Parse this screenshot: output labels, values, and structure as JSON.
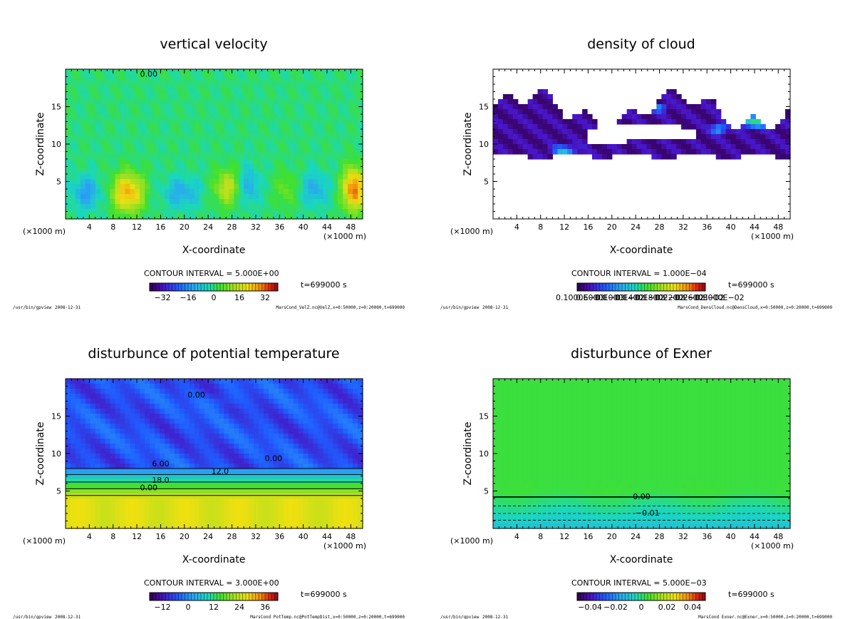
{
  "footer_program": "/usr/bin/gpview",
  "footer_date": "2008-12-31",
  "time_label": "t=699000 s",
  "xlabel": "X-coordinate",
  "ylabel": "Z-coordinate",
  "x_unit": "(×1000 m)",
  "chart_data": [
    {
      "type": "heatmap",
      "title": "vertical velocity",
      "xlabel": "X-coordinate",
      "ylabel": "Z-coordinate",
      "x_unit": "(×1000 m)",
      "xlim": [
        0,
        50
      ],
      "ylim": [
        0,
        20
      ],
      "xticks": [
        4,
        8,
        12,
        16,
        20,
        24,
        28,
        32,
        36,
        40,
        44,
        48
      ],
      "yticks": [
        5,
        10,
        15
      ],
      "contour_interval": "CONTOUR INTERVAL = 5.000E+00",
      "contour_labels": [
        "0.00"
      ],
      "colorbar_ticks": [
        "−32",
        "−16",
        "0",
        "16",
        "32"
      ],
      "colorbar_range": [
        -40,
        40
      ],
      "time": "t=699000 s",
      "source": "MarsCond_VelZ.nc@VelZ,x=0:50000,z=0:20000,t=699000"
    },
    {
      "type": "heatmap",
      "title": "density of cloud",
      "xlabel": "X-coordinate",
      "ylabel": "Z-coordinate",
      "x_unit": "(×1000 m)",
      "xlim": [
        0,
        50
      ],
      "ylim": [
        0,
        20
      ],
      "xticks": [
        4,
        8,
        12,
        16,
        20,
        24,
        28,
        32,
        36,
        40,
        44,
        48
      ],
      "yticks": [
        5,
        10,
        15
      ],
      "contour_interval": "CONTOUR INTERVAL = 1.000E−04",
      "contour_labels": [],
      "colorbar_ticks": [
        "0.1000E−03",
        "0.6000E−03",
        "0.1000E−02",
        "0.1400E−02",
        "0.1800E−02",
        "0.2200E−02",
        "0.2600E−02",
        "0.3000E−02"
      ],
      "colorbar_range": [
        0,
        0.003
      ],
      "time": "t=699000 s",
      "source": "MarsCond_DensCloud.nc@DensCloud,x=0:50000,z=0:20000,t=699000"
    },
    {
      "type": "heatmap",
      "title": "disturbunce of potential temperature",
      "xlabel": "X-coordinate",
      "ylabel": "Z-coordinate",
      "x_unit": "(×1000 m)",
      "xlim": [
        0,
        50
      ],
      "ylim": [
        0,
        20
      ],
      "xticks": [
        4,
        8,
        12,
        16,
        20,
        24,
        28,
        32,
        36,
        40,
        44,
        48
      ],
      "yticks": [
        5,
        10,
        15
      ],
      "contour_interval": "CONTOUR INTERVAL = 3.000E+00",
      "contour_labels": [
        "0.00",
        "0.00",
        "6.00",
        "12.0",
        "18.0",
        "0.00"
      ],
      "colorbar_ticks": [
        "−12",
        "0",
        "12",
        "24",
        "36"
      ],
      "colorbar_range": [
        -18,
        42
      ],
      "time": "t=699000 s",
      "source": "MarsCond_PotTemp.nc@PotTempDist,x=0:50000,z=0:20000,t=699000"
    },
    {
      "type": "heatmap",
      "title": "disturbunce of Exner",
      "xlabel": "X-coordinate",
      "ylabel": "Z-coordinate",
      "x_unit": "(×1000 m)",
      "xlim": [
        0,
        50
      ],
      "ylim": [
        0,
        20
      ],
      "xticks": [
        4,
        8,
        12,
        16,
        20,
        24,
        28,
        32,
        36,
        40,
        44,
        48
      ],
      "yticks": [
        5,
        10,
        15
      ],
      "contour_interval": "CONTOUR INTERVAL = 5.000E−03",
      "contour_labels": [
        "0.00",
        "−0.01"
      ],
      "colorbar_ticks": [
        "−0.04",
        "−0.02",
        "0",
        "0.02",
        "0.04"
      ],
      "colorbar_range": [
        -0.05,
        0.05
      ],
      "time": "t=699000 s",
      "source": "MarsCond_Exner.nc@Exner,x=0:50000,z=0:20000,t=699000"
    }
  ]
}
